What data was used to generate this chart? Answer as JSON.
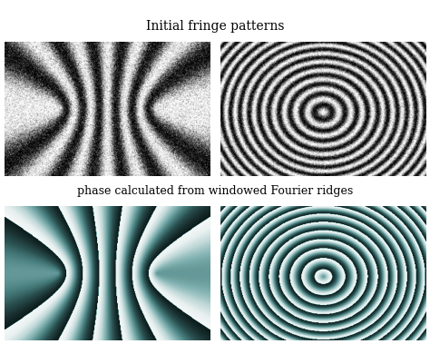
{
  "title_top": "Initial fringe patterns",
  "title_bottom": "phase calculated from windowed Fourier ridges",
  "title_fontsize": 10,
  "subtitle_fontsize": 9,
  "bg_color": "#ffffff",
  "n": 300,
  "noise_seed": 7,
  "noise_amp1": 0.25,
  "noise_amp2": 0.18,
  "fringe1_n_bands": 2.5,
  "fringe2_rings": 14,
  "phase1_n_bands": 2.5,
  "phase2_rings": 14
}
